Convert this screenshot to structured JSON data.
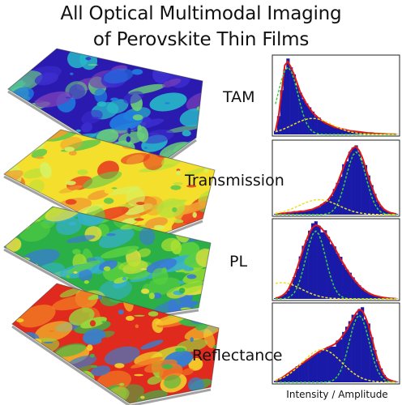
{
  "figure": {
    "title_line1": "All Optical Multimodal Imaging",
    "title_line2": "of Perovskite Thin Films",
    "x_axis_label": "Intensity / Amplitude"
  },
  "layers": [
    {
      "name": "TAM",
      "palette": [
        "#2a1ab0",
        "#3d2fd0",
        "#7a3fb8",
        "#1f7ee0",
        "#27b9c8",
        "#6ad07a"
      ]
    },
    {
      "name": "Transmission",
      "palette": [
        "#f4e02c",
        "#b8e03a",
        "#64c84a",
        "#e84020",
        "#f0a030",
        "#d8f060"
      ]
    },
    {
      "name": "PL",
      "palette": [
        "#2bb048",
        "#5ad040",
        "#a8e030",
        "#f0e040",
        "#3a78d8",
        "#36b0d0"
      ]
    },
    {
      "name": "Reflectance",
      "palette": [
        "#e02a1e",
        "#f07a22",
        "#f4d22c",
        "#9ad83c",
        "#3ab848",
        "#3680d0"
      ]
    }
  ],
  "chart_data": {
    "type": "histogram",
    "xlabel": "Intensity / Amplitude",
    "panels": [
      {
        "name": "TAM",
        "bin_heights": [
          0.05,
          0.25,
          0.6,
          0.95,
          1.0,
          0.92,
          0.82,
          0.7,
          0.58,
          0.5,
          0.42,
          0.36,
          0.3,
          0.26,
          0.22,
          0.19,
          0.16,
          0.14,
          0.12,
          0.1,
          0.09,
          0.08,
          0.07,
          0.06,
          0.05,
          0.045,
          0.04,
          0.035,
          0.03,
          0.025,
          0.02,
          0.02,
          0.015,
          0.012,
          0.01,
          0.008,
          0.006,
          0.005,
          0.004,
          0.003
        ]
      },
      {
        "name": "Transmission",
        "bin_heights": [
          0.01,
          0.01,
          0.02,
          0.02,
          0.03,
          0.03,
          0.04,
          0.04,
          0.05,
          0.05,
          0.06,
          0.07,
          0.08,
          0.1,
          0.12,
          0.15,
          0.18,
          0.22,
          0.28,
          0.36,
          0.46,
          0.58,
          0.7,
          0.82,
          0.92,
          0.98,
          1.0,
          0.94,
          0.84,
          0.7,
          0.55,
          0.42,
          0.3,
          0.2,
          0.13,
          0.08,
          0.05,
          0.03,
          0.02,
          0.01
        ]
      },
      {
        "name": "PL",
        "bin_heights": [
          0.01,
          0.02,
          0.04,
          0.07,
          0.12,
          0.2,
          0.3,
          0.42,
          0.55,
          0.68,
          0.8,
          0.9,
          0.97,
          1.0,
          0.99,
          0.95,
          0.9,
          0.84,
          0.77,
          0.7,
          0.62,
          0.54,
          0.47,
          0.4,
          0.34,
          0.28,
          0.23,
          0.18,
          0.14,
          0.11,
          0.08,
          0.06,
          0.045,
          0.035,
          0.025,
          0.018,
          0.012,
          0.008,
          0.005,
          0.003
        ]
      },
      {
        "name": "Reflectance",
        "bin_heights": [
          0.02,
          0.04,
          0.06,
          0.09,
          0.12,
          0.15,
          0.18,
          0.21,
          0.24,
          0.27,
          0.3,
          0.33,
          0.36,
          0.39,
          0.42,
          0.44,
          0.46,
          0.48,
          0.5,
          0.52,
          0.56,
          0.6,
          0.66,
          0.72,
          0.8,
          0.88,
          0.95,
          1.0,
          0.98,
          0.9,
          0.78,
          0.62,
          0.45,
          0.3,
          0.18,
          0.1,
          0.05,
          0.03,
          0.015,
          0.008
        ]
      }
    ]
  }
}
